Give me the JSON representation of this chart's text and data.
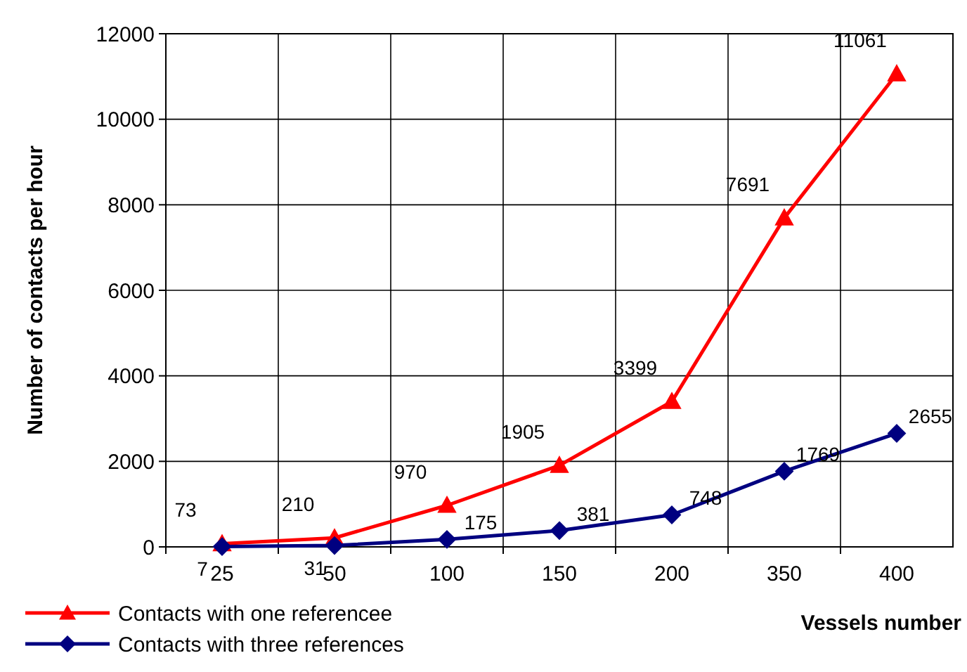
{
  "chart_data": {
    "type": "line",
    "xlabel": "Vessels number",
    "ylabel": "Number of contacts per hour",
    "categories": [
      "25",
      "50",
      "100",
      "150",
      "200",
      "350",
      "400"
    ],
    "series": [
      {
        "name": "Contacts with one referencee",
        "color": "#ff0000",
        "marker": "triangle",
        "values": [
          73,
          210,
          970,
          1905,
          3399,
          7691,
          11061
        ]
      },
      {
        "name": "Contacts with three references",
        "color": "#000080",
        "marker": "diamond",
        "values": [
          7,
          31,
          175,
          381,
          748,
          1769,
          2655
        ]
      }
    ],
    "ylim": [
      0,
      12000
    ],
    "yticks": [
      0,
      2000,
      4000,
      6000,
      8000,
      10000,
      12000
    ],
    "grid": true,
    "legend": "bottom left",
    "data_labels": true
  }
}
